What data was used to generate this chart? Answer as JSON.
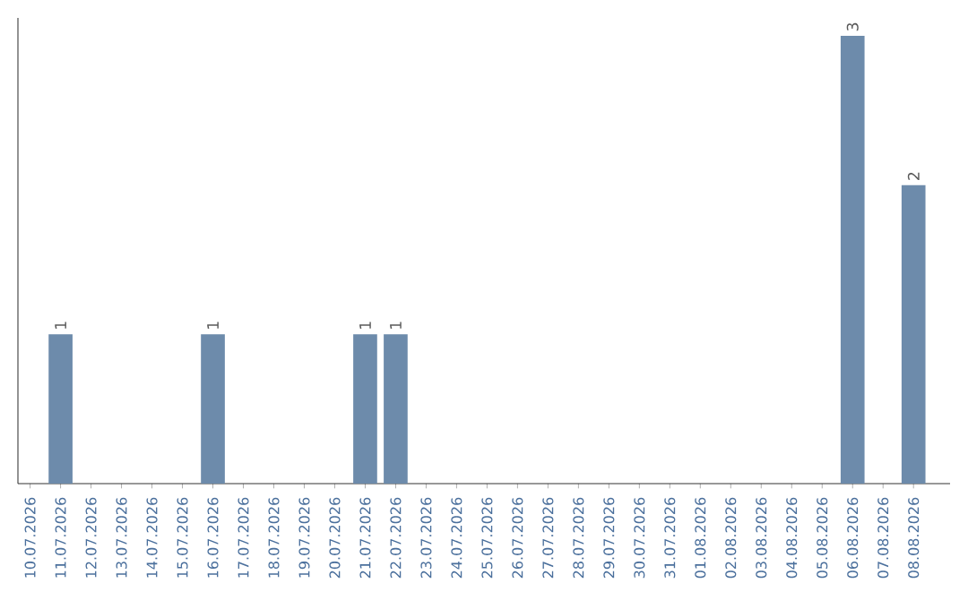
{
  "chart_data": {
    "type": "bar",
    "categories": [
      "10.07.2026",
      "11.07.2026",
      "12.07.2026",
      "13.07.2026",
      "14.07.2026",
      "15.07.2026",
      "16.07.2026",
      "17.07.2026",
      "18.07.2026",
      "19.07.2026",
      "20.07.2026",
      "21.07.2026",
      "22.07.2026",
      "23.07.2026",
      "24.07.2026",
      "25.07.2026",
      "26.07.2026",
      "27.07.2026",
      "28.07.2026",
      "29.07.2026",
      "30.07.2026",
      "31.07.2026",
      "01.08.2026",
      "02.08.2026",
      "03.08.2026",
      "04.08.2026",
      "05.08.2026",
      "06.08.2026",
      "07.08.2026",
      "08.08.2026"
    ],
    "values": [
      0,
      1,
      0,
      0,
      0,
      0,
      1,
      0,
      0,
      0,
      0,
      1,
      1,
      0,
      0,
      0,
      0,
      0,
      0,
      0,
      0,
      0,
      0,
      0,
      0,
      0,
      0,
      3,
      0,
      2
    ],
    "value_labels": [
      null,
      "1",
      null,
      null,
      null,
      null,
      "1",
      null,
      null,
      null,
      null,
      "1",
      "1",
      null,
      null,
      null,
      null,
      null,
      null,
      null,
      null,
      null,
      null,
      null,
      null,
      null,
      null,
      "3",
      null,
      "2"
    ],
    "color": "#6d8bab",
    "ylim": [
      0,
      3
    ],
    "tick_labels": "x"
  }
}
